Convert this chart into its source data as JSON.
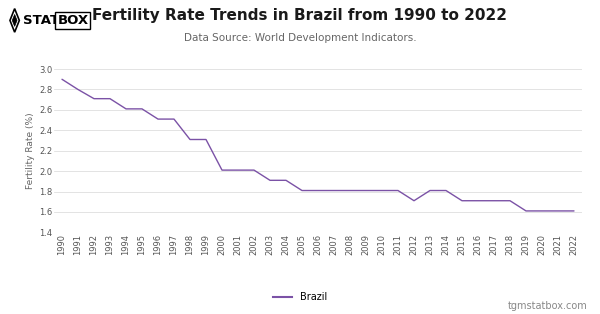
{
  "title": "Fertility Rate Trends in Brazil from 1990 to 2022",
  "subtitle": "Data Source: World Development Indicators.",
  "ylabel": "Fertility Rate (%)",
  "xlabel": "",
  "footer_text": "tgmstatbox.com",
  "legend_label": "Brazil",
  "line_color": "#7B52A6",
  "background_color": "#ffffff",
  "grid_color": "#d8d8d8",
  "years": [
    1990,
    1991,
    1992,
    1993,
    1994,
    1995,
    1996,
    1997,
    1998,
    1999,
    2000,
    2001,
    2002,
    2003,
    2004,
    2005,
    2006,
    2007,
    2008,
    2009,
    2010,
    2011,
    2012,
    2013,
    2014,
    2015,
    2016,
    2017,
    2018,
    2019,
    2020,
    2021,
    2022
  ],
  "values": [
    2.9,
    2.8,
    2.71,
    2.71,
    2.61,
    2.61,
    2.51,
    2.51,
    2.31,
    2.31,
    2.01,
    2.01,
    2.01,
    1.91,
    1.91,
    1.81,
    1.81,
    1.81,
    1.81,
    1.81,
    1.81,
    1.81,
    1.71,
    1.81,
    1.81,
    1.71,
    1.71,
    1.71,
    1.71,
    1.61,
    1.61,
    1.61,
    1.61
  ],
  "ylim": [
    1.4,
    3.0
  ],
  "yticks": [
    1.4,
    1.6,
    1.8,
    2.0,
    2.2,
    2.4,
    2.6,
    2.8,
    3.0
  ],
  "title_fontsize": 11,
  "subtitle_fontsize": 7.5,
  "ylabel_fontsize": 6.5,
  "tick_fontsize": 6,
  "legend_fontsize": 7,
  "footer_fontsize": 7,
  "logo_stat_color": "#111111",
  "logo_box_color": "#111111"
}
